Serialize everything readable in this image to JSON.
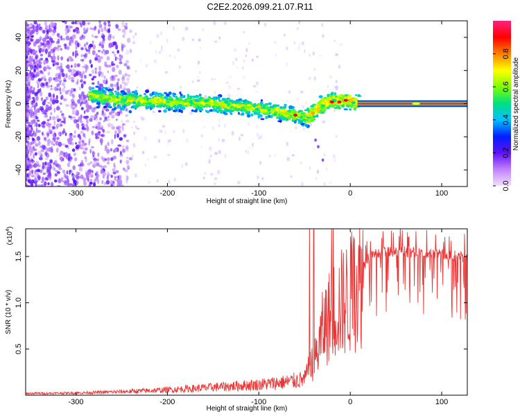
{
  "title": "C2E2.2026.099.21.07.R11",
  "chart_data": [
    {
      "type": "heatmap",
      "name": "spectrogram",
      "xlabel": "Height of straight line (km)",
      "ylabel": "Frequency (Hz)",
      "xlim": [
        -355,
        128
      ],
      "ylim": [
        -50,
        50
      ],
      "xticks": [
        -300,
        -200,
        -100,
        0,
        100
      ],
      "xtick_labels": [
        "-300",
        "-200",
        "-100",
        "0",
        "100"
      ],
      "yticks": [
        -40,
        -20,
        0,
        20,
        40
      ],
      "ytick_labels": [
        "-40",
        "-20",
        "0",
        "20",
        "40"
      ],
      "ridge": {
        "x": [
          -280,
          -250,
          -200,
          -150,
          -100,
          -80,
          -60,
          -45,
          -35,
          -20,
          0,
          10,
          128
        ],
        "y": [
          5,
          2,
          1,
          0,
          -3,
          -5,
          -7,
          -8,
          -2,
          2,
          2,
          0,
          0
        ]
      },
      "tail": {
        "x": [
          -38,
          -35,
          -30
        ],
        "y": [
          -22,
          -26,
          -34
        ]
      },
      "colorbar": {
        "label": "Normalized spectral amplitude",
        "range": [
          0,
          1
        ],
        "ticks": [
          0.0,
          0.2,
          0.4,
          0.6,
          0.8
        ],
        "tick_labels": [
          "0.0",
          "0.2",
          "0.4",
          "0.6",
          "0.8"
        ],
        "colors": [
          "#f0e0ff",
          "#c080ff",
          "#6010ff",
          "#0020ff",
          "#00c0ff",
          "#00e080",
          "#80ff00",
          "#ffff00",
          "#ff8000",
          "#ff0000",
          "#ff2080"
        ]
      }
    },
    {
      "type": "line",
      "name": "snr",
      "xlabel": "Height of straight line (km)",
      "ylabel": "SNR (10 * v/v)",
      "multiplier": "(x10",
      "multiplier_exp": "4",
      "multiplier_close": ")",
      "xlim": [
        -355,
        128
      ],
      "ylim": [
        0,
        1.8
      ],
      "xticks": [
        -300,
        -200,
        -100,
        0,
        100
      ],
      "xtick_labels": [
        "-300",
        "-200",
        "-100",
        "0",
        "100"
      ],
      "yticks": [
        0.5,
        1.0,
        1.5
      ],
      "ytick_labels": [
        "0.5",
        "1.0",
        "1.5"
      ],
      "color": "#ee3333",
      "envelope": {
        "x": [
          -355,
          -300,
          -250,
          -200,
          -150,
          -100,
          -70,
          -50,
          -45,
          -40,
          -35,
          -30,
          -25,
          -20,
          -15,
          -10,
          -5,
          0,
          10,
          20,
          30,
          50,
          80,
          100,
          128
        ],
        "y": [
          0.02,
          0.025,
          0.04,
          0.06,
          0.09,
          0.12,
          0.15,
          0.18,
          0.3,
          0.4,
          0.55,
          0.8,
          0.9,
          1.0,
          1.05,
          1.1,
          1.15,
          1.2,
          1.35,
          1.55,
          1.6,
          1.62,
          1.6,
          1.58,
          1.55
        ]
      }
    }
  ]
}
